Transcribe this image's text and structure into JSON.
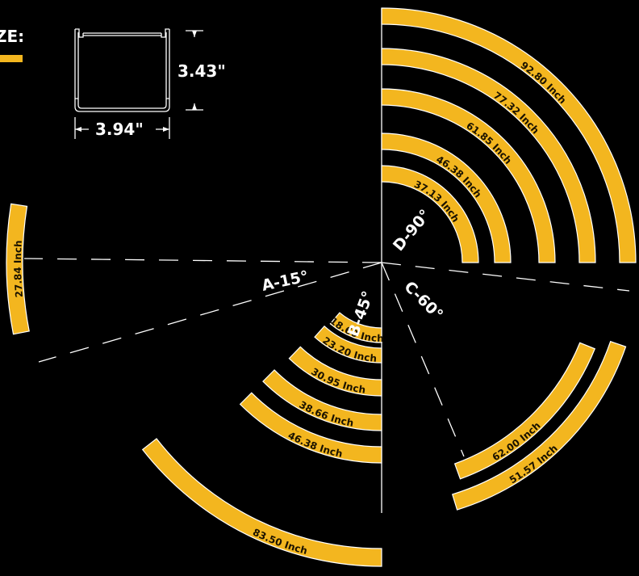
{
  "header": {
    "heading": "ZE:",
    "underline_color": "#f3b61f"
  },
  "profile": {
    "height_label": "3.43\"",
    "width_label": "3.94\""
  },
  "colors": {
    "arc_fill": "#f3b61f",
    "arc_stroke": "#ffffff",
    "line": "#ffffff",
    "background": "#000000"
  },
  "groups": [
    {
      "name": "D",
      "angle_label": "D-90°",
      "arcs": [
        "37.13 Inch",
        "46.38 Inch",
        "61.85 Inch",
        "77.32 Inch",
        "92.80 Inch"
      ]
    },
    {
      "name": "A",
      "angle_label": "A-15°",
      "arcs": [
        "27.84 Inch"
      ]
    },
    {
      "name": "B",
      "angle_label": "B-45°",
      "arcs": [
        "18.60 Inch",
        "23.20 Inch",
        "30.95 Inch",
        "38.66 Inch",
        "46.38 Inch",
        "83.50 Inch"
      ]
    },
    {
      "name": "C",
      "angle_label": "C-60°",
      "arcs": [
        "62.00 Inch",
        "51.57 Inch"
      ]
    }
  ]
}
